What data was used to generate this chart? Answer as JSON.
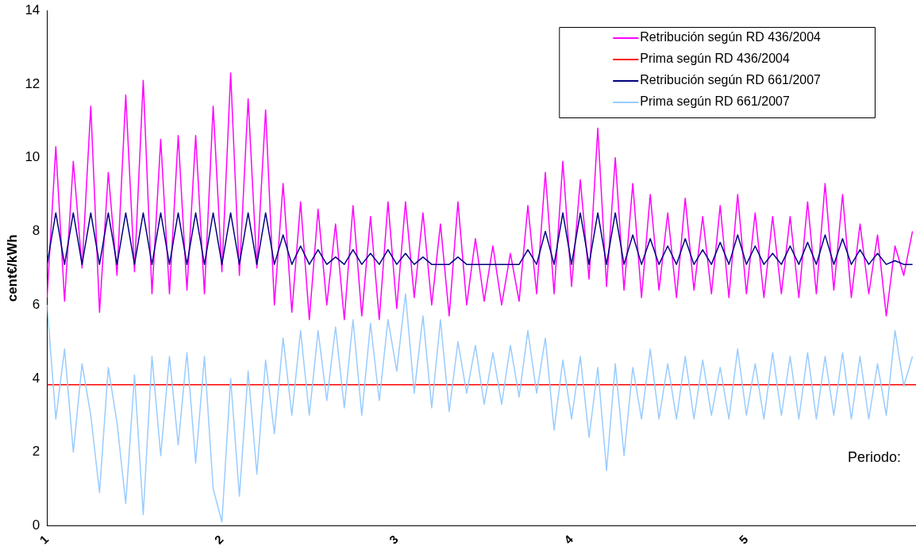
{
  "chart_data": {
    "type": "line",
    "ylabel": "cent€/kWh",
    "xlim": [
      1,
      5.97
    ],
    "xticks": [
      1,
      2,
      3,
      4,
      5
    ],
    "ylim": [
      0,
      14
    ],
    "yticks": [
      0,
      2,
      4,
      6,
      8,
      10,
      12,
      14
    ],
    "grid": false,
    "legend": "top right",
    "annotations": [
      "Periodo:"
    ],
    "series": [
      {
        "name": "Retribución según RD 436/2004",
        "color": "#ff00ff",
        "x": [
          1.0,
          1.05,
          1.1,
          1.15,
          1.2,
          1.25,
          1.3,
          1.35,
          1.4,
          1.45,
          1.5,
          1.55,
          1.6,
          1.65,
          1.7,
          1.75,
          1.8,
          1.85,
          1.9,
          1.95,
          2.0,
          2.05,
          2.1,
          2.15,
          2.2,
          2.25,
          2.3,
          2.35,
          2.4,
          2.45,
          2.5,
          2.55,
          2.6,
          2.65,
          2.7,
          2.75,
          2.8,
          2.85,
          2.9,
          2.95,
          3.0,
          3.05,
          3.1,
          3.15,
          3.2,
          3.25,
          3.3,
          3.35,
          3.4,
          3.45,
          3.5,
          3.55,
          3.6,
          3.65,
          3.7,
          3.75,
          3.8,
          3.85,
          3.9,
          3.95,
          4.0,
          4.05,
          4.1,
          4.15,
          4.2,
          4.25,
          4.3,
          4.35,
          4.4,
          4.45,
          4.5,
          4.55,
          4.6,
          4.65,
          4.7,
          4.75,
          4.8,
          4.85,
          4.9,
          4.95,
          5.0,
          5.05,
          5.1,
          5.15,
          5.2,
          5.25,
          5.3,
          5.35,
          5.4,
          5.45,
          5.5,
          5.55,
          5.6,
          5.65,
          5.7,
          5.75,
          5.8,
          5.85,
          5.9,
          5.95
        ],
        "values": [
          6.2,
          10.3,
          6.1,
          9.9,
          7.0,
          11.4,
          5.8,
          9.6,
          6.8,
          11.7,
          6.9,
          12.1,
          6.3,
          10.5,
          6.3,
          10.6,
          6.4,
          10.6,
          6.3,
          11.4,
          6.9,
          12.3,
          6.8,
          11.6,
          7.0,
          11.3,
          6.0,
          9.3,
          5.8,
          8.8,
          5.6,
          8.6,
          6.0,
          8.2,
          5.6,
          8.7,
          5.7,
          8.4,
          5.6,
          8.8,
          5.9,
          8.8,
          6.2,
          8.5,
          6.0,
          8.2,
          5.7,
          8.8,
          6.0,
          7.8,
          6.1,
          7.6,
          6.0,
          7.4,
          6.1,
          8.7,
          6.3,
          9.6,
          6.3,
          9.9,
          6.5,
          9.4,
          6.7,
          10.8,
          6.5,
          10.0,
          6.4,
          9.3,
          6.2,
          9.0,
          6.4,
          8.5,
          6.2,
          8.9,
          6.4,
          8.4,
          6.3,
          8.7,
          6.2,
          9.0,
          6.3,
          8.5,
          6.2,
          8.4,
          6.3,
          8.4,
          6.2,
          8.8,
          6.3,
          9.3,
          6.4,
          9.0,
          6.2,
          8.2,
          6.3,
          7.9,
          5.7,
          7.6,
          6.8,
          8.0
        ]
      },
      {
        "name": "Prima según RD 436/2004",
        "color": "#ff0000",
        "x": [
          1,
          5.97
        ],
        "values": [
          3.83,
          3.83
        ]
      },
      {
        "name": "Retribución según RD 661/2007",
        "color": "#000080",
        "x": [
          1.0,
          1.05,
          1.1,
          1.15,
          1.2,
          1.25,
          1.3,
          1.35,
          1.4,
          1.45,
          1.5,
          1.55,
          1.6,
          1.65,
          1.7,
          1.75,
          1.8,
          1.85,
          1.9,
          1.95,
          2.0,
          2.05,
          2.1,
          2.15,
          2.2,
          2.25,
          2.3,
          2.35,
          2.4,
          2.45,
          2.5,
          2.55,
          2.6,
          2.65,
          2.7,
          2.75,
          2.8,
          2.85,
          2.9,
          2.95,
          3.0,
          3.05,
          3.1,
          3.15,
          3.2,
          3.25,
          3.3,
          3.35,
          3.4,
          3.45,
          3.5,
          3.55,
          3.6,
          3.65,
          3.7,
          3.75,
          3.8,
          3.85,
          3.9,
          3.95,
          4.0,
          4.05,
          4.1,
          4.15,
          4.2,
          4.25,
          4.3,
          4.35,
          4.4,
          4.45,
          4.5,
          4.55,
          4.6,
          4.65,
          4.7,
          4.75,
          4.8,
          4.85,
          4.9,
          4.95,
          5.0,
          5.05,
          5.1,
          5.15,
          5.2,
          5.25,
          5.3,
          5.35,
          5.4,
          5.45,
          5.5,
          5.55,
          5.6,
          5.65,
          5.7,
          5.75,
          5.8,
          5.85,
          5.9,
          5.95
        ],
        "values": [
          7.1,
          8.5,
          7.1,
          8.5,
          7.1,
          8.5,
          7.1,
          8.5,
          7.1,
          8.5,
          7.1,
          8.5,
          7.1,
          8.5,
          7.1,
          8.5,
          7.1,
          8.5,
          7.1,
          8.5,
          7.1,
          8.5,
          7.1,
          8.5,
          7.1,
          8.5,
          7.1,
          7.9,
          7.1,
          7.6,
          7.1,
          7.5,
          7.1,
          7.3,
          7.1,
          7.5,
          7.1,
          7.4,
          7.1,
          7.5,
          7.1,
          7.4,
          7.1,
          7.3,
          7.1,
          7.1,
          7.1,
          7.3,
          7.1,
          7.1,
          7.1,
          7.1,
          7.1,
          7.1,
          7.1,
          7.5,
          7.1,
          8.0,
          7.1,
          8.5,
          7.1,
          8.5,
          7.1,
          8.5,
          7.1,
          8.5,
          7.1,
          7.9,
          7.1,
          7.8,
          7.1,
          7.6,
          7.1,
          7.8,
          7.1,
          7.5,
          7.1,
          7.7,
          7.1,
          7.9,
          7.1,
          7.6,
          7.1,
          7.4,
          7.1,
          7.6,
          7.1,
          7.7,
          7.1,
          7.9,
          7.1,
          7.8,
          7.1,
          7.5,
          7.1,
          7.4,
          7.1,
          7.2,
          7.1,
          7.1
        ]
      },
      {
        "name": "Prima según RD 661/2007",
        "color": "#99ccff",
        "x": [
          1.0,
          1.05,
          1.1,
          1.15,
          1.2,
          1.25,
          1.3,
          1.35,
          1.4,
          1.45,
          1.5,
          1.55,
          1.6,
          1.65,
          1.7,
          1.75,
          1.8,
          1.85,
          1.9,
          1.95,
          2.0,
          2.05,
          2.1,
          2.15,
          2.2,
          2.25,
          2.3,
          2.35,
          2.4,
          2.45,
          2.5,
          2.55,
          2.6,
          2.65,
          2.7,
          2.75,
          2.8,
          2.85,
          2.9,
          2.95,
          3.0,
          3.05,
          3.1,
          3.15,
          3.2,
          3.25,
          3.3,
          3.35,
          3.4,
          3.45,
          3.5,
          3.55,
          3.6,
          3.65,
          3.7,
          3.75,
          3.8,
          3.85,
          3.9,
          3.95,
          4.0,
          4.05,
          4.1,
          4.15,
          4.2,
          4.25,
          4.3,
          4.35,
          4.4,
          4.45,
          4.5,
          4.55,
          4.6,
          4.65,
          4.7,
          4.75,
          4.8,
          4.85,
          4.9,
          4.95,
          5.0,
          5.05,
          5.1,
          5.15,
          5.2,
          5.25,
          5.3,
          5.35,
          5.4,
          5.45,
          5.5,
          5.55,
          5.6,
          5.65,
          5.7,
          5.75,
          5.8,
          5.85,
          5.9,
          5.95
        ],
        "values": [
          6.0,
          2.9,
          4.8,
          2.0,
          4.4,
          3.0,
          0.9,
          4.3,
          2.8,
          0.6,
          4.1,
          0.3,
          4.6,
          1.9,
          4.6,
          2.2,
          4.7,
          1.7,
          4.6,
          1.0,
          0.1,
          4.0,
          0.8,
          4.2,
          1.4,
          4.5,
          2.5,
          5.1,
          3.0,
          5.3,
          3.0,
          5.3,
          3.4,
          5.4,
          3.2,
          5.6,
          3.0,
          5.5,
          3.4,
          5.6,
          4.2,
          6.3,
          3.6,
          5.7,
          3.2,
          5.6,
          3.1,
          5.0,
          3.6,
          4.9,
          3.3,
          4.7,
          3.3,
          4.9,
          3.5,
          5.3,
          3.6,
          5.1,
          2.6,
          4.5,
          2.9,
          4.6,
          2.4,
          4.3,
          1.5,
          4.4,
          1.9,
          4.3,
          2.9,
          4.8,
          2.9,
          4.4,
          2.9,
          4.6,
          2.9,
          4.5,
          3.0,
          4.3,
          2.9,
          4.8,
          3.0,
          4.4,
          2.9,
          4.7,
          3.0,
          4.6,
          2.9,
          4.7,
          2.9,
          4.6,
          3.0,
          4.7,
          2.9,
          4.6,
          2.9,
          4.4,
          3.0,
          5.3,
          3.8,
          4.6
        ]
      }
    ]
  }
}
